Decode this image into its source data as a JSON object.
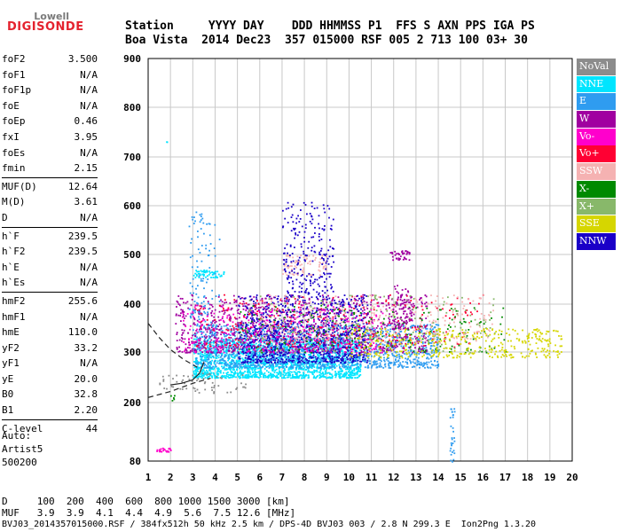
{
  "logo": {
    "line1": "Lowell",
    "line2": "DIGISONDE"
  },
  "header": {
    "line1": "Station     YYYY DAY    DDD HHMMSS P1  FFS S AXN PPS IGA PS",
    "line2": "Boa Vista  2014 Dec23  357 015000 RSF 005 2 713 100 03+ 30"
  },
  "params": [
    [
      {
        "name": "foF2",
        "value": "3.500"
      },
      {
        "name": "foF1",
        "value": "N/A"
      },
      {
        "name": "foF1p",
        "value": "N/A"
      },
      {
        "name": "foE",
        "value": "N/A"
      },
      {
        "name": "foEp",
        "value": "0.46"
      },
      {
        "name": "fxI",
        "value": "3.95"
      },
      {
        "name": "foEs",
        "value": "N/A"
      },
      {
        "name": "fmin",
        "value": "2.15"
      }
    ],
    [
      {
        "name": "MUF(D)",
        "value": "12.64"
      },
      {
        "name": "M(D)",
        "value": "3.61"
      },
      {
        "name": "D",
        "value": "N/A"
      }
    ],
    [
      {
        "name": "h`F",
        "value": "239.5"
      },
      {
        "name": "h`F2",
        "value": "239.5"
      },
      {
        "name": "h`E",
        "value": "N/A"
      },
      {
        "name": "h`Es",
        "value": "N/A"
      }
    ],
    [
      {
        "name": "hmF2",
        "value": "255.6"
      },
      {
        "name": "hmF1",
        "value": "N/A"
      },
      {
        "name": "hmE",
        "value": "110.0"
      },
      {
        "name": "yF2",
        "value": "33.2"
      },
      {
        "name": "yF1",
        "value": "N/A"
      },
      {
        "name": "yE",
        "value": "20.0"
      },
      {
        "name": "B0",
        "value": "32.8"
      },
      {
        "name": "B1",
        "value": "2.20"
      }
    ],
    [
      {
        "name": "C-level",
        "value": "44"
      }
    ]
  ],
  "auto": {
    "line1": "Auto:",
    "line2": "Artist5",
    "line3": "500200"
  },
  "bottom": {
    "d_line": "D     100  200  400  600  800 1000 1500 3000 [km]",
    "muf_line": "MUF   3.9  3.9  4.1  4.4  4.9  5.6  7.5 12.6 [MHz]",
    "footer": "BVJ03_2014357015000.RSF / 384fx512h 50 kHz 2.5 km / DPS-4D BVJ03 003 / 2.8 N 299.3 E  Ion2Png 1.3.20"
  },
  "legend": [
    {
      "label": "NoVal",
      "color": "#8c8c8c"
    },
    {
      "label": "NNE",
      "color": "#00e5ff"
    },
    {
      "label": "E",
      "color": "#2f9cf0"
    },
    {
      "label": "W",
      "color": "#a000a0"
    },
    {
      "label": "Vo-",
      "color": "#ff00cc"
    },
    {
      "label": "Vo+",
      "color": "#ff0033"
    },
    {
      "label": "SSW",
      "color": "#f5b2b2"
    },
    {
      "label": "X-",
      "color": "#008a00"
    },
    {
      "label": "X+",
      "color": "#88b86a"
    },
    {
      "label": "SSE",
      "color": "#d6d600"
    },
    {
      "label": "NNW",
      "color": "#1a00c8"
    }
  ],
  "chart_data": {
    "type": "scatter",
    "xlim": [
      1,
      20
    ],
    "ylim": [
      80,
      900
    ],
    "x_ticks": [
      "1",
      "2",
      "3",
      "4",
      "5",
      "6",
      "7",
      "8",
      "9",
      "10",
      "11",
      "12",
      "13",
      "14",
      "15",
      "16",
      "17",
      "18",
      "19",
      "20"
    ],
    "y_ticks": [
      "80",
      "200",
      "300",
      "400",
      "500",
      "600",
      "700",
      "800",
      "900"
    ],
    "grid": true,
    "legend_position": "right",
    "clusters": [
      {
        "series": "NNE",
        "x": [
          3.0,
          10.5
        ],
        "y": [
          250,
          330
        ],
        "n": 1800
      },
      {
        "series": "E",
        "x": [
          3.0,
          14.0
        ],
        "y": [
          270,
          360
        ],
        "n": 1500
      },
      {
        "series": "W",
        "x": [
          2.2,
          13.5
        ],
        "y": [
          300,
          420
        ],
        "n": 1100
      },
      {
        "series": "NNW",
        "x": [
          5.0,
          10.8
        ],
        "y": [
          280,
          420
        ],
        "n": 900
      },
      {
        "series": "Vo-",
        "x": [
          2.5,
          11.5
        ],
        "y": [
          300,
          400
        ],
        "n": 300
      },
      {
        "series": "Vo+",
        "x": [
          3.0,
          16.0
        ],
        "y": [
          310,
          420
        ],
        "n": 260
      },
      {
        "series": "SSW",
        "x": [
          6.0,
          16.5
        ],
        "y": [
          320,
          420
        ],
        "n": 350
      },
      {
        "series": "SSW",
        "x": [
          7.0,
          9.0
        ],
        "y": [
          460,
          500
        ],
        "n": 90
      },
      {
        "series": "X+",
        "x": [
          5.0,
          16.5
        ],
        "y": [
          300,
          420
        ],
        "n": 200
      },
      {
        "series": "X-",
        "x": [
          5.0,
          17.0
        ],
        "y": [
          300,
          400
        ],
        "n": 180
      },
      {
        "series": "SSE",
        "x": [
          10.0,
          19.5
        ],
        "y": [
          290,
          350
        ],
        "n": 350
      },
      {
        "series": "NNW",
        "x": [
          7.0,
          9.3
        ],
        "y": [
          420,
          610
        ],
        "n": 220
      },
      {
        "series": "NNE",
        "x": [
          3.0,
          4.4
        ],
        "y": [
          455,
          470
        ],
        "n": 60
      },
      {
        "series": "E",
        "x": [
          2.8,
          4.2
        ],
        "y": [
          320,
          590
        ],
        "n": 120
      },
      {
        "series": "W",
        "x": [
          11.8,
          12.7
        ],
        "y": [
          490,
          510
        ],
        "n": 40
      },
      {
        "series": "W",
        "x": [
          12.0,
          12.8
        ],
        "y": [
          350,
          440
        ],
        "n": 80
      },
      {
        "series": "E",
        "x": [
          14.5,
          14.7
        ],
        "y": [
          80,
          190
        ],
        "n": 30
      },
      {
        "series": "Vo-",
        "x": [
          1.3,
          2.0
        ],
        "y": [
          100,
          108
        ],
        "n": 25
      },
      {
        "series": "NoVal",
        "x": [
          1.4,
          5.5
        ],
        "y": [
          220,
          260
        ],
        "n": 60
      },
      {
        "series": "NNE",
        "x": [
          1.8,
          1.85
        ],
        "y": [
          730,
          740
        ],
        "n": 2
      },
      {
        "series": "SSE",
        "x": [
          18.0,
          19.5
        ],
        "y": [
          325,
          350
        ],
        "n": 25
      },
      {
        "series": "X-",
        "x": [
          1.9,
          2.2
        ],
        "y": [
          205,
          215
        ],
        "n": 5
      }
    ],
    "curves": [
      {
        "name": "dashed lower",
        "x": [
          1,
          2,
          3,
          3.8
        ],
        "y": [
          210,
          222,
          238,
          248
        ]
      },
      {
        "name": "dashed upper",
        "x": [
          1,
          1.5,
          2,
          2.6,
          3.2
        ],
        "y": [
          360,
          330,
          305,
          285,
          270
        ]
      },
      {
        "name": "profile",
        "x": [
          2.0,
          2.5,
          3.0,
          3.3,
          3.5
        ],
        "y": [
          235,
          238,
          245,
          258,
          280
        ]
      }
    ]
  }
}
